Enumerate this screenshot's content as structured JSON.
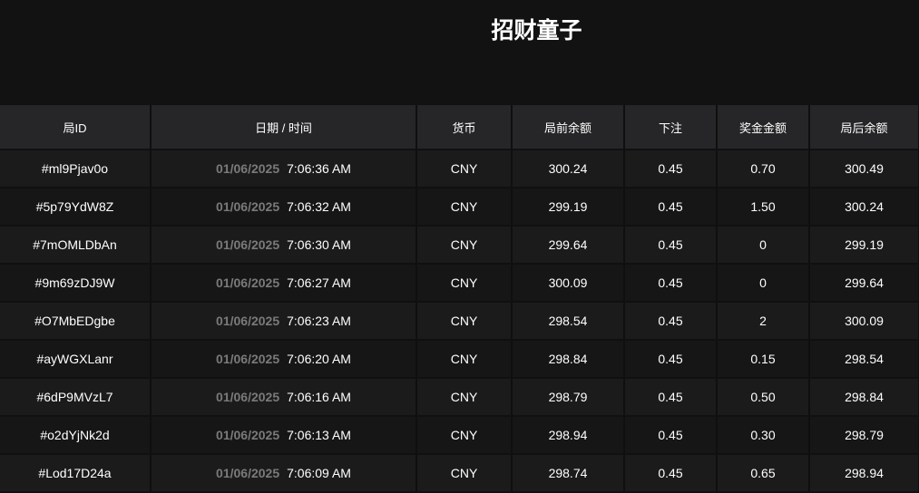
{
  "title": "招财童子",
  "headers": [
    "局ID",
    "日期 / 时间",
    "货币",
    "局前余额",
    "下注",
    "奖金金额",
    "局后余额"
  ],
  "rows": [
    {
      "id": "#ml9Pjav0o",
      "date": "01/06/2025",
      "time": "7:06:36 AM",
      "currency": "CNY",
      "before": "300.24",
      "bet": "0.45",
      "win": "0.70",
      "after": "300.49"
    },
    {
      "id": "#5p79YdW8Z",
      "date": "01/06/2025",
      "time": "7:06:32 AM",
      "currency": "CNY",
      "before": "299.19",
      "bet": "0.45",
      "win": "1.50",
      "after": "300.24"
    },
    {
      "id": "#7mOMLDbAn",
      "date": "01/06/2025",
      "time": "7:06:30 AM",
      "currency": "CNY",
      "before": "299.64",
      "bet": "0.45",
      "win": "0",
      "after": "299.19"
    },
    {
      "id": "#9m69zDJ9W",
      "date": "01/06/2025",
      "time": "7:06:27 AM",
      "currency": "CNY",
      "before": "300.09",
      "bet": "0.45",
      "win": "0",
      "after": "299.64"
    },
    {
      "id": "#O7MbEDgbe",
      "date": "01/06/2025",
      "time": "7:06:23 AM",
      "currency": "CNY",
      "before": "298.54",
      "bet": "0.45",
      "win": "2",
      "after": "300.09"
    },
    {
      "id": "#ayWGXLanr",
      "date": "01/06/2025",
      "time": "7:06:20 AM",
      "currency": "CNY",
      "before": "298.84",
      "bet": "0.45",
      "win": "0.15",
      "after": "298.54"
    },
    {
      "id": "#6dP9MVzL7",
      "date": "01/06/2025",
      "time": "7:06:16 AM",
      "currency": "CNY",
      "before": "298.79",
      "bet": "0.45",
      "win": "0.50",
      "after": "298.84"
    },
    {
      "id": "#o2dYjNk2d",
      "date": "01/06/2025",
      "time": "7:06:13 AM",
      "currency": "CNY",
      "before": "298.94",
      "bet": "0.45",
      "win": "0.30",
      "after": "298.79"
    },
    {
      "id": "#Lod17D24a",
      "date": "01/06/2025",
      "time": "7:06:09 AM",
      "currency": "CNY",
      "before": "298.74",
      "bet": "0.45",
      "win": "0.65",
      "after": "298.94"
    }
  ]
}
